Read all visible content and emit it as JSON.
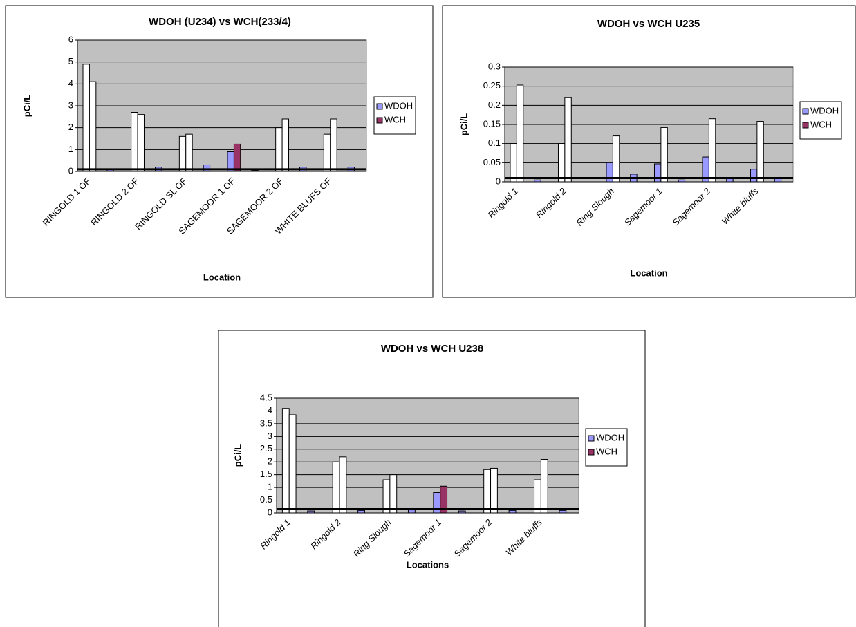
{
  "chart_data": [
    {
      "type": "bar",
      "title": "WDOH (U234) vs WCH(233/4)",
      "xlabel": "Location",
      "ylabel": "pCi/L",
      "categories": [
        "RINGOLD 1 OF",
        null,
        "RINGOLD 2 OF",
        null,
        "RINGOLD SL OF",
        null,
        "SAGEMOOR 1 OF",
        null,
        "SAGEMOOR 2 OF",
        null,
        "WHITE BLUFS OF",
        null
      ],
      "category_font_style": "normal",
      "series": [
        {
          "name": "WDOH",
          "color": "#9999ff",
          "values": [
            4.9,
            0.1,
            2.7,
            0.2,
            1.6,
            0.3,
            0.9,
            0.05,
            2.0,
            0.2,
            1.7,
            0.2
          ],
          "point_colors": [
            "#ffffff",
            "#9999ff",
            "#ffffff",
            "#9999ff",
            "#ffffff",
            "#9999ff",
            "#9999ff",
            "#9999ff",
            "#ffffff",
            "#9999ff",
            "#ffffff",
            "#9999ff"
          ]
        },
        {
          "name": "WCH",
          "color": "#993366",
          "values": [
            4.1,
            null,
            2.6,
            null,
            1.7,
            null,
            1.25,
            null,
            2.4,
            null,
            2.4,
            null
          ],
          "point_colors": [
            "#ffffff",
            "#993366",
            "#ffffff",
            "#993366",
            "#ffffff",
            "#993366",
            "#993366",
            "#993366",
            "#ffffff",
            "#993366",
            "#ffffff",
            "#993366"
          ]
        }
      ],
      "ylim": [
        0,
        6
      ],
      "yticks": [
        0,
        1,
        2,
        3,
        4,
        5,
        6
      ],
      "grid": true,
      "legend": "right",
      "reference_line": 0.1
    },
    {
      "type": "bar",
      "title": "WDOH vs WCH U235",
      "xlabel": "Location",
      "ylabel": "pCi/L",
      "categories": [
        "Ringold 1",
        null,
        "Ringold 2",
        null,
        "Ring Slough",
        null,
        "Sagemoor 1",
        null,
        "Sagemoor 2",
        null,
        "White bluffs",
        null
      ],
      "category_font_style": "italic",
      "series": [
        {
          "name": "WDOH",
          "color": "#9999ff",
          "values": [
            0.1,
            0.005,
            0.1,
            null,
            0.05,
            0.02,
            0.047,
            0.005,
            0.065,
            0.01,
            0.033,
            0.01
          ],
          "point_colors": [
            "#ffffff",
            "#9999ff",
            "#ffffff",
            "#9999ff",
            "#9999ff",
            "#9999ff",
            "#9999ff",
            "#9999ff",
            "#9999ff",
            "#9999ff",
            "#9999ff",
            "#9999ff"
          ]
        },
        {
          "name": "WCH",
          "color": "#993366",
          "values": [
            0.253,
            null,
            0.22,
            null,
            0.12,
            null,
            0.142,
            null,
            0.165,
            null,
            0.158,
            null
          ],
          "point_colors": [
            "#ffffff",
            "#993366",
            "#ffffff",
            "#993366",
            "#ffffff",
            "#993366",
            "#ffffff",
            "#993366",
            "#ffffff",
            "#993366",
            "#ffffff",
            "#993366"
          ]
        }
      ],
      "ylim": [
        0,
        0.3
      ],
      "yticks": [
        0,
        0.05,
        0.1,
        0.15,
        0.2,
        0.25,
        0.3
      ],
      "grid": true,
      "legend": "right",
      "reference_line": 0.01
    },
    {
      "type": "bar",
      "title": "WDOH vs WCH U238",
      "xlabel": "Locations",
      "ylabel": "pCi/L",
      "categories": [
        "Ringold 1",
        null,
        "Ringold 2",
        null,
        "Ring Slough",
        null,
        "Sagemoor 1",
        null,
        "Sagemoor 2",
        null,
        "White bluffs",
        null
      ],
      "category_font_style": "italic",
      "series": [
        {
          "name": "WDOH",
          "color": "#9999ff",
          "values": [
            4.1,
            0.08,
            2.0,
            0.1,
            1.3,
            0.12,
            0.8,
            0.08,
            1.7,
            0.1,
            1.3,
            0.1
          ],
          "point_colors": [
            "#ffffff",
            "#9999ff",
            "#ffffff",
            "#9999ff",
            "#ffffff",
            "#9999ff",
            "#9999ff",
            "#9999ff",
            "#ffffff",
            "#9999ff",
            "#ffffff",
            "#9999ff"
          ]
        },
        {
          "name": "WCH",
          "color": "#993366",
          "values": [
            3.85,
            null,
            2.2,
            null,
            1.5,
            null,
            1.05,
            null,
            1.75,
            null,
            2.1,
            null
          ],
          "point_colors": [
            "#ffffff",
            "#993366",
            "#ffffff",
            "#993366",
            "#ffffff",
            "#993366",
            "#993366",
            "#993366",
            "#ffffff",
            "#993366",
            "#ffffff",
            "#993366"
          ]
        }
      ],
      "ylim": [
        0,
        4.5
      ],
      "yticks": [
        0,
        0.5,
        1,
        1.5,
        2,
        2.5,
        3,
        3.5,
        4,
        4.5
      ],
      "grid": true,
      "legend": "right",
      "reference_line": 0.15
    }
  ]
}
